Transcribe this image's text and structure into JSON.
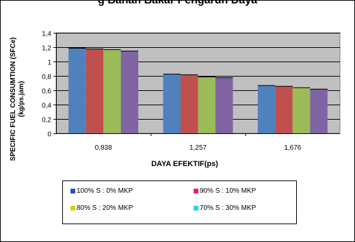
{
  "chart_data": {
    "type": "bar",
    "title": "g Bahan Bakar Pengaruh Daya",
    "xlabel": "DAYA EFEKTIF(ps)",
    "ylabel_line1": "SPECIFIC FUEL CONSUMTION (SFCe)",
    "ylabel_line2": "(kg/ps.jam)",
    "categories": [
      "0,838",
      "1,257",
      "1,676"
    ],
    "ylim": [
      0,
      1.4
    ],
    "yticks": [
      "0",
      "0,2",
      "0,4",
      "0,6",
      "0,8",
      "1",
      "1,2",
      "1,4"
    ],
    "grid": true,
    "legend_position": "bottom",
    "series": [
      {
        "name": "100% S : 0% MKP",
        "color": "#4F81BD",
        "values": [
          1.19,
          0.83,
          0.67
        ]
      },
      {
        "name": "90% S : 10% MKP",
        "color": "#C0504D",
        "values": [
          1.18,
          0.82,
          0.66
        ]
      },
      {
        "name": "80% S : 20% MKP",
        "color": "#9BBB59",
        "values": [
          1.17,
          0.79,
          0.64
        ]
      },
      {
        "name": "70% S : 30% MKP",
        "color": "#8064A2",
        "values": [
          1.15,
          0.78,
          0.62
        ]
      }
    ],
    "legend_swatch_colors": [
      "#2B4CC9",
      "#E0207E",
      "#D5D300",
      "#21D7E8"
    ],
    "plot_background": "#C0C0C0"
  }
}
